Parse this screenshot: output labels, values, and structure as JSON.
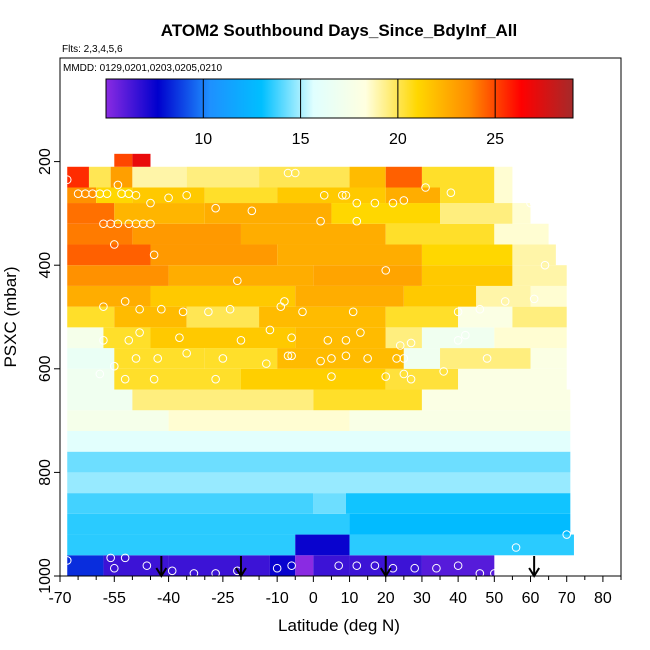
{
  "chart_data": {
    "type": "heatmap",
    "title": "ATOM2 Southbound Days_Since_BdyInf_All",
    "flights_label": "Flts: 2,3,4,5,6",
    "dates_label": "MMDD: 0129,0201,0203,0205,0210",
    "xlabel": "Latitude (deg N)",
    "ylabel": "PSXC (mbar)",
    "xlim": [
      -70,
      85
    ],
    "ylim": [
      1000,
      0
    ],
    "x_ticks": [
      -70,
      -55,
      -40,
      -25,
      -10,
      0,
      10,
      20,
      30,
      40,
      50,
      60,
      70,
      80
    ],
    "x_tick_labels": [
      "-70",
      "-55",
      "-40",
      "-25",
      "-10",
      "0",
      "10",
      "20",
      "30",
      "40",
      "50",
      "60",
      "70",
      "80"
    ],
    "y_ticks": [
      200,
      400,
      600,
      800,
      1000
    ],
    "y_tick_labels": [
      "200",
      "400",
      "600",
      "800",
      "1000"
    ],
    "colorbar": {
      "range": [
        5,
        29
      ],
      "ticks": [
        10,
        15,
        20,
        25
      ],
      "tick_labels": [
        "10",
        "15",
        "20",
        "25"
      ],
      "colors": [
        "#8a2be2",
        "#0000cd",
        "#1e90ff",
        "#00bfff",
        "#e0ffff",
        "#ffffe0",
        "#ffd700",
        "#ff8c00",
        "#ff0000",
        "#a52a2a"
      ]
    },
    "pressure_bands": [
      {
        "p": [
          960,
          1000
        ],
        "segments": [
          [
            -68,
            -58,
            8.5
          ],
          [
            -58,
            -40,
            6.5
          ],
          [
            -40,
            -12,
            6.5
          ],
          [
            -12,
            -5,
            7.5
          ],
          [
            -5,
            0,
            5
          ],
          [
            0,
            10,
            6.5
          ],
          [
            10,
            30,
            6.5
          ],
          [
            30,
            50,
            6
          ]
        ]
      },
      {
        "p": [
          920,
          960
        ],
        "segments": [
          [
            -68,
            -5,
            13.5
          ],
          [
            -5,
            10,
            7.5
          ],
          [
            10,
            72,
            13.5
          ]
        ]
      },
      {
        "p": [
          880,
          920
        ],
        "segments": [
          [
            -68,
            10,
            13.5
          ],
          [
            10,
            71,
            12.8
          ]
        ]
      },
      {
        "p": [
          840,
          880
        ],
        "segments": [
          [
            -68,
            0,
            13.8
          ],
          [
            0,
            9,
            14.3
          ],
          [
            9,
            71,
            13.2
          ]
        ]
      },
      {
        "p": [
          800,
          840
        ],
        "segments": [
          [
            -68,
            71,
            14.8
          ]
        ]
      },
      {
        "p": [
          760,
          800
        ],
        "segments": [
          [
            -68,
            71,
            14.3
          ]
        ]
      },
      {
        "p": [
          720,
          760
        ],
        "segments": [
          [
            -68,
            71,
            15.8
          ]
        ]
      },
      {
        "p": [
          680,
          720
        ],
        "segments": [
          [
            -68,
            -40,
            17.5
          ],
          [
            -40,
            10,
            18.5
          ],
          [
            10,
            71,
            17.8
          ]
        ]
      },
      {
        "p": [
          640,
          680
        ],
        "segments": [
          [
            -68,
            -50,
            17
          ],
          [
            -50,
            0,
            19.5
          ],
          [
            0,
            30,
            20.5
          ],
          [
            30,
            71,
            18
          ]
        ]
      },
      {
        "p": [
          600,
          640
        ],
        "segments": [
          [
            -68,
            -55,
            17
          ],
          [
            -55,
            -20,
            20.5
          ],
          [
            -20,
            20,
            21.3
          ],
          [
            20,
            40,
            20.3
          ],
          [
            40,
            70,
            18
          ]
        ]
      },
      {
        "p": [
          560,
          600
        ],
        "segments": [
          [
            -68,
            -55,
            16.5
          ],
          [
            -55,
            -30,
            20.5
          ],
          [
            -30,
            -10,
            20.5
          ],
          [
            -10,
            25,
            22
          ],
          [
            25,
            35,
            17
          ],
          [
            35,
            60,
            19.5
          ],
          [
            60,
            70,
            18
          ]
        ]
      },
      {
        "p": [
          520,
          560
        ],
        "segments": [
          [
            -68,
            -58,
            17.5
          ],
          [
            -58,
            -45,
            20.5
          ],
          [
            -45,
            -5,
            21.5
          ],
          [
            -5,
            20,
            22
          ],
          [
            20,
            30,
            19.5
          ],
          [
            30,
            50,
            17
          ],
          [
            50,
            70,
            18.5
          ]
        ]
      },
      {
        "p": [
          480,
          520
        ],
        "segments": [
          [
            -68,
            -55,
            20.5
          ],
          [
            -55,
            -35,
            22
          ],
          [
            -35,
            -15,
            20
          ],
          [
            -15,
            20,
            22
          ],
          [
            20,
            40,
            20.5
          ],
          [
            40,
            55,
            18
          ],
          [
            55,
            70,
            19.5
          ]
        ]
      },
      {
        "p": [
          440,
          480
        ],
        "segments": [
          [
            -68,
            -45,
            22.5
          ],
          [
            -45,
            -5,
            21.5
          ],
          [
            -5,
            25,
            22.5
          ],
          [
            25,
            45,
            21.5
          ],
          [
            45,
            60,
            19
          ],
          [
            60,
            70,
            18.5
          ]
        ]
      },
      {
        "p": [
          400,
          440
        ],
        "segments": [
          [
            -68,
            -40,
            23.5
          ],
          [
            -40,
            0,
            22.5
          ],
          [
            0,
            30,
            22.8
          ],
          [
            30,
            55,
            21.5
          ],
          [
            55,
            70,
            19
          ]
        ]
      },
      {
        "p": [
          360,
          400
        ],
        "segments": [
          [
            -68,
            -45,
            24.5
          ],
          [
            -45,
            -10,
            23.2
          ],
          [
            -10,
            30,
            22.5
          ],
          [
            30,
            55,
            21
          ],
          [
            55,
            67,
            19
          ]
        ]
      },
      {
        "p": [
          320,
          360
        ],
        "segments": [
          [
            -68,
            -50,
            24
          ],
          [
            -50,
            -20,
            23.2
          ],
          [
            -20,
            20,
            22.5
          ],
          [
            20,
            50,
            20.5
          ],
          [
            50,
            65,
            18.5
          ]
        ]
      },
      {
        "p": [
          280,
          320
        ],
        "segments": [
          [
            -68,
            -55,
            24.2
          ],
          [
            -55,
            -30,
            22.2
          ],
          [
            -30,
            5,
            22.5
          ],
          [
            5,
            35,
            21
          ],
          [
            35,
            55,
            19.5
          ],
          [
            55,
            60,
            18.5
          ]
        ]
      },
      {
        "p": [
          250,
          280
        ],
        "segments": [
          [
            -68,
            -60,
            23.5
          ],
          [
            -60,
            -50,
            21
          ],
          [
            -50,
            -30,
            21.5
          ],
          [
            -30,
            -10,
            20.5
          ],
          [
            -10,
            20,
            21.5
          ],
          [
            20,
            35,
            22.5
          ],
          [
            35,
            50,
            20.5
          ],
          [
            50,
            55,
            18.5
          ]
        ]
      },
      {
        "p": [
          210,
          250
        ],
        "segments": [
          [
            -68,
            -62,
            25.5
          ],
          [
            -62,
            -56,
            20
          ],
          [
            -56,
            -50,
            23
          ],
          [
            -50,
            -35,
            19
          ],
          [
            -35,
            -15,
            19.5
          ],
          [
            -15,
            10,
            20
          ],
          [
            10,
            20,
            22
          ],
          [
            20,
            30,
            24.5
          ],
          [
            30,
            50,
            20.5
          ],
          [
            50,
            55,
            18.5
          ]
        ]
      },
      {
        "p": [
          185,
          210
        ],
        "segments": [
          [
            -55,
            -50,
            25
          ],
          [
            -50,
            -45,
            27
          ]
        ]
      }
    ],
    "obs_points": [
      {
        "lat": -68,
        "p": 235
      },
      {
        "lat": -65,
        "p": 262
      },
      {
        "lat": -63,
        "p": 262
      },
      {
        "lat": -61,
        "p": 262
      },
      {
        "lat": -59,
        "p": 262
      },
      {
        "lat": -57,
        "p": 262
      },
      {
        "lat": -54,
        "p": 245
      },
      {
        "lat": -53,
        "p": 262
      },
      {
        "lat": -51,
        "p": 262
      },
      {
        "lat": -49,
        "p": 265
      },
      {
        "lat": -45,
        "p": 280
      },
      {
        "lat": -40,
        "p": 270
      },
      {
        "lat": -35,
        "p": 265
      },
      {
        "lat": -27,
        "p": 290
      },
      {
        "lat": -17,
        "p": 295
      },
      {
        "lat": -7,
        "p": 222
      },
      {
        "lat": -5,
        "p": 222
      },
      {
        "lat": 3,
        "p": 265
      },
      {
        "lat": 8,
        "p": 265
      },
      {
        "lat": 9,
        "p": 265
      },
      {
        "lat": 12,
        "p": 280
      },
      {
        "lat": 17,
        "p": 280
      },
      {
        "lat": 22,
        "p": 280
      },
      {
        "lat": 25,
        "p": 275
      },
      {
        "lat": 31,
        "p": 250
      },
      {
        "lat": 38,
        "p": 260
      },
      {
        "lat": 60,
        "p": 280
      },
      {
        "lat": 61,
        "p": 280
      },
      {
        "lat": -58,
        "p": 320
      },
      {
        "lat": -56,
        "p": 320
      },
      {
        "lat": -54,
        "p": 320
      },
      {
        "lat": -51,
        "p": 320
      },
      {
        "lat": -49,
        "p": 320
      },
      {
        "lat": -47,
        "p": 320
      },
      {
        "lat": -45,
        "p": 320
      },
      {
        "lat": 2,
        "p": 315
      },
      {
        "lat": 12,
        "p": 315
      },
      {
        "lat": -55,
        "p": 360
      },
      {
        "lat": -44,
        "p": 380
      },
      {
        "lat": 20,
        "p": 410
      },
      {
        "lat": -21,
        "p": 430
      },
      {
        "lat": 64,
        "p": 400
      },
      {
        "lat": -58,
        "p": 480
      },
      {
        "lat": -52,
        "p": 470
      },
      {
        "lat": -48,
        "p": 485
      },
      {
        "lat": -42,
        "p": 485
      },
      {
        "lat": -36,
        "p": 490
      },
      {
        "lat": -29,
        "p": 490
      },
      {
        "lat": -23,
        "p": 485
      },
      {
        "lat": -9,
        "p": 480
      },
      {
        "lat": -8,
        "p": 470
      },
      {
        "lat": -3,
        "p": 490
      },
      {
        "lat": 11,
        "p": 490
      },
      {
        "lat": 40,
        "p": 490
      },
      {
        "lat": 46,
        "p": 485
      },
      {
        "lat": 53,
        "p": 470
      },
      {
        "lat": 61,
        "p": 465
      },
      {
        "lat": -58,
        "p": 545
      },
      {
        "lat": -51,
        "p": 545
      },
      {
        "lat": -48,
        "p": 530
      },
      {
        "lat": -37,
        "p": 540
      },
      {
        "lat": -20,
        "p": 545
      },
      {
        "lat": -12,
        "p": 525
      },
      {
        "lat": -6,
        "p": 540
      },
      {
        "lat": 4,
        "p": 545
      },
      {
        "lat": 9,
        "p": 545
      },
      {
        "lat": 13,
        "p": 530
      },
      {
        "lat": 24,
        "p": 555
      },
      {
        "lat": 27,
        "p": 550
      },
      {
        "lat": 40,
        "p": 545
      },
      {
        "lat": 42,
        "p": 535
      },
      {
        "lat": -6,
        "p": 575
      },
      {
        "lat": 5,
        "p": 580
      },
      {
        "lat": 9,
        "p": 575
      },
      {
        "lat": 25,
        "p": 580
      },
      {
        "lat": -55,
        "p": 595
      },
      {
        "lat": -49,
        "p": 580
      },
      {
        "lat": -43,
        "p": 580
      },
      {
        "lat": -35,
        "p": 570
      },
      {
        "lat": -25,
        "p": 580
      },
      {
        "lat": -13,
        "p": 590
      },
      {
        "lat": -7,
        "p": 575
      },
      {
        "lat": 2,
        "p": 585
      },
      {
        "lat": 15,
        "p": 580
      },
      {
        "lat": 23,
        "p": 580
      },
      {
        "lat": 48,
        "p": 580
      },
      {
        "lat": -59,
        "p": 610
      },
      {
        "lat": -52,
        "p": 620
      },
      {
        "lat": -44,
        "p": 620
      },
      {
        "lat": -27,
        "p": 620
      },
      {
        "lat": 5,
        "p": 615
      },
      {
        "lat": 20,
        "p": 615
      },
      {
        "lat": 25,
        "p": 610
      },
      {
        "lat": 27,
        "p": 620
      },
      {
        "lat": 36,
        "p": 605
      },
      {
        "lat": 70,
        "p": 920
      },
      {
        "lat": 56,
        "p": 945
      },
      {
        "lat": -68,
        "p": 970
      },
      {
        "lat": -56,
        "p": 965
      },
      {
        "lat": -52,
        "p": 965
      },
      {
        "lat": -46,
        "p": 980
      },
      {
        "lat": -55,
        "p": 985
      },
      {
        "lat": -39,
        "p": 990
      },
      {
        "lat": -33,
        "p": 995
      },
      {
        "lat": -27,
        "p": 995
      },
      {
        "lat": -21,
        "p": 990
      },
      {
        "lat": -10,
        "p": 985
      },
      {
        "lat": -6,
        "p": 980
      },
      {
        "lat": 7,
        "p": 980
      },
      {
        "lat": 12,
        "p": 980
      },
      {
        "lat": 17,
        "p": 980
      },
      {
        "lat": 22,
        "p": 985
      },
      {
        "lat": 28,
        "p": 985
      },
      {
        "lat": 34,
        "p": 985
      },
      {
        "lat": 40,
        "p": 980
      },
      {
        "lat": 46,
        "p": 995
      },
      {
        "lat": 50,
        "p": 995
      }
    ],
    "arrow_markers_lat": [
      -42,
      -20,
      20,
      61
    ]
  }
}
